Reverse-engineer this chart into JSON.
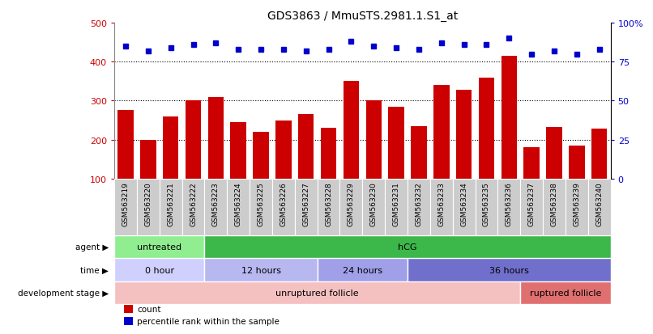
{
  "title": "GDS3863 / MmuSTS.2981.1.S1_at",
  "samples": [
    "GSM563219",
    "GSM563220",
    "GSM563221",
    "GSM563222",
    "GSM563223",
    "GSM563224",
    "GSM563225",
    "GSM563226",
    "GSM563227",
    "GSM563228",
    "GSM563229",
    "GSM563230",
    "GSM563231",
    "GSM563232",
    "GSM563233",
    "GSM563234",
    "GSM563235",
    "GSM563236",
    "GSM563237",
    "GSM563238",
    "GSM563239",
    "GSM563240"
  ],
  "counts": [
    275,
    200,
    260,
    300,
    310,
    245,
    220,
    250,
    265,
    230,
    350,
    300,
    285,
    235,
    340,
    328,
    360,
    415,
    180,
    233,
    185,
    228
  ],
  "percentiles": [
    85,
    82,
    84,
    86,
    87,
    83,
    83,
    83,
    82,
    83,
    88,
    85,
    84,
    83,
    87,
    86,
    86,
    90,
    80,
    82,
    80,
    83
  ],
  "bar_color": "#cc0000",
  "dot_color": "#0000cc",
  "ylim_left": [
    100,
    500
  ],
  "ylim_right": [
    0,
    100
  ],
  "yticks_left": [
    100,
    200,
    300,
    400,
    500
  ],
  "yticks_right": [
    0,
    25,
    50,
    75,
    100
  ],
  "yticklabels_right": [
    "0",
    "25",
    "50",
    "75",
    "100%"
  ],
  "grid_lines": [
    200,
    300,
    400
  ],
  "agent_groups": [
    {
      "label": "untreated",
      "start": 0,
      "end": 4,
      "color": "#90ee90"
    },
    {
      "label": "hCG",
      "start": 4,
      "end": 22,
      "color": "#3cb84a"
    }
  ],
  "time_groups": [
    {
      "label": "0 hour",
      "start": 0,
      "end": 4,
      "color": "#d0d0ff"
    },
    {
      "label": "12 hours",
      "start": 4,
      "end": 9,
      "color": "#b8b8f0"
    },
    {
      "label": "24 hours",
      "start": 9,
      "end": 13,
      "color": "#a0a0e8"
    },
    {
      "label": "36 hours",
      "start": 13,
      "end": 22,
      "color": "#7070cc"
    }
  ],
  "dev_groups": [
    {
      "label": "unruptured follicle",
      "start": 0,
      "end": 18,
      "color": "#f5c0c0"
    },
    {
      "label": "ruptured follicle",
      "start": 18,
      "end": 22,
      "color": "#e07070"
    }
  ],
  "legend_items": [
    {
      "label": "count",
      "color": "#cc0000"
    },
    {
      "label": "percentile rank within the sample",
      "color": "#0000cc"
    }
  ],
  "row_labels": [
    "agent",
    "time",
    "development stage"
  ],
  "bg_color": "#ffffff",
  "xtick_bg": "#cccccc"
}
